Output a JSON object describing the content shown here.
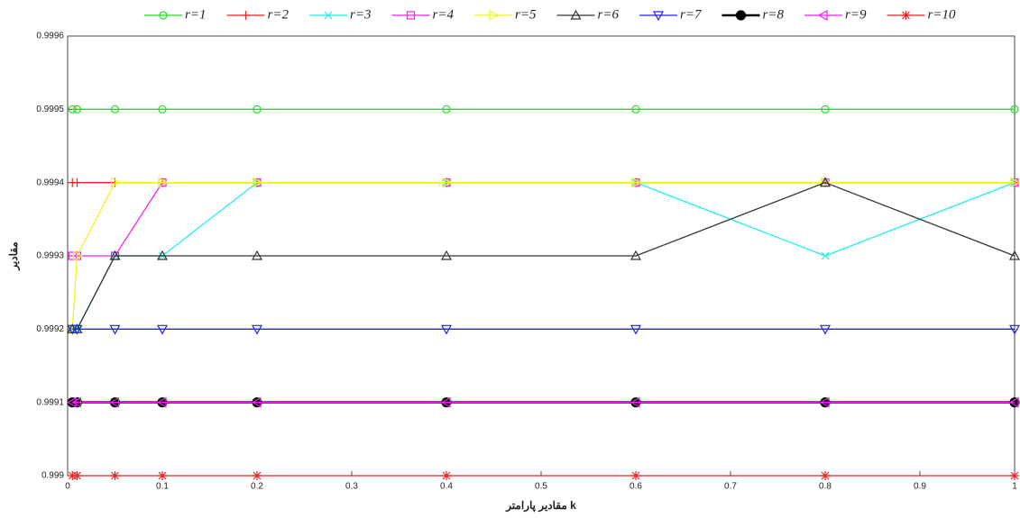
{
  "chart_data": {
    "type": "line",
    "x_label": "مقادیر پارامتر k",
    "y_label": "مقادیر",
    "x": [
      0.005,
      0.01,
      0.05,
      0.1,
      0.2,
      0.4,
      0.6,
      0.8,
      1
    ],
    "xlim": [
      0,
      1
    ],
    "xticks": [
      0,
      0.1,
      0.2,
      0.3,
      0.4,
      0.5,
      0.6,
      0.7,
      0.8,
      0.9,
      1
    ],
    "ylim": [
      0.999,
      0.9996
    ],
    "yticks": [
      0.999,
      0.9991,
      0.9992,
      0.9993,
      0.9994,
      0.9995,
      0.9996
    ],
    "legend": "top",
    "series": [
      {
        "name": "r=1",
        "color": "#22dd22",
        "marker": "circle",
        "values": [
          0.9995,
          0.9995,
          0.9995,
          0.9995,
          0.9995,
          0.9995,
          0.9995,
          0.9995,
          0.9995
        ]
      },
      {
        "name": "r=2",
        "color": "#ee2222",
        "marker": "plus",
        "values": [
          0.9994,
          0.9994,
          0.9994,
          0.9994,
          0.9994,
          0.9994,
          0.9994,
          0.9994,
          0.9994
        ]
      },
      {
        "name": "r=3",
        "color": "#22eeee",
        "marker": "x",
        "values": [
          0.9992,
          0.9992,
          0.9993,
          0.9993,
          0.9994,
          0.9994,
          0.9994,
          0.9993,
          0.9994
        ]
      },
      {
        "name": "r=4",
        "color": "#ee22ee",
        "marker": "square",
        "values": [
          0.9993,
          0.9993,
          0.9993,
          0.9994,
          0.9994,
          0.9994,
          0.9994,
          0.9994,
          0.9994
        ]
      },
      {
        "name": "r=5",
        "color": "#f2f222",
        "marker": "triangle-right",
        "values": [
          0.9992,
          0.9993,
          0.9994,
          0.9994,
          0.9994,
          0.9994,
          0.9994,
          0.9994,
          0.9994
        ]
      },
      {
        "name": "r=6",
        "color": "#333333",
        "marker": "triangle-up",
        "values": [
          0.9992,
          0.9992,
          0.9993,
          0.9993,
          0.9993,
          0.9993,
          0.9993,
          0.9994,
          0.9993
        ]
      },
      {
        "name": "r=7",
        "color": "#2222ee",
        "marker": "triangle-down",
        "values": [
          0.9992,
          0.9992,
          0.9992,
          0.9992,
          0.9992,
          0.9992,
          0.9992,
          0.9992,
          0.9992
        ]
      },
      {
        "name": "r=8",
        "color": "#000000",
        "marker": "circle-filled",
        "values": [
          0.9991,
          0.9991,
          0.9991,
          0.9991,
          0.9991,
          0.9991,
          0.9991,
          0.9991,
          0.9991
        ]
      },
      {
        "name": "r=9",
        "color": "#ee22ee",
        "marker": "triangle-left",
        "values": [
          0.9991,
          0.9991,
          0.9991,
          0.9991,
          0.9991,
          0.9991,
          0.9991,
          0.9991,
          0.9991
        ]
      },
      {
        "name": "r=10",
        "color": "#ee2222",
        "marker": "star",
        "values": [
          0.999,
          0.999,
          0.999,
          0.999,
          0.999,
          0.999,
          0.999,
          0.999,
          0.999
        ]
      }
    ]
  }
}
